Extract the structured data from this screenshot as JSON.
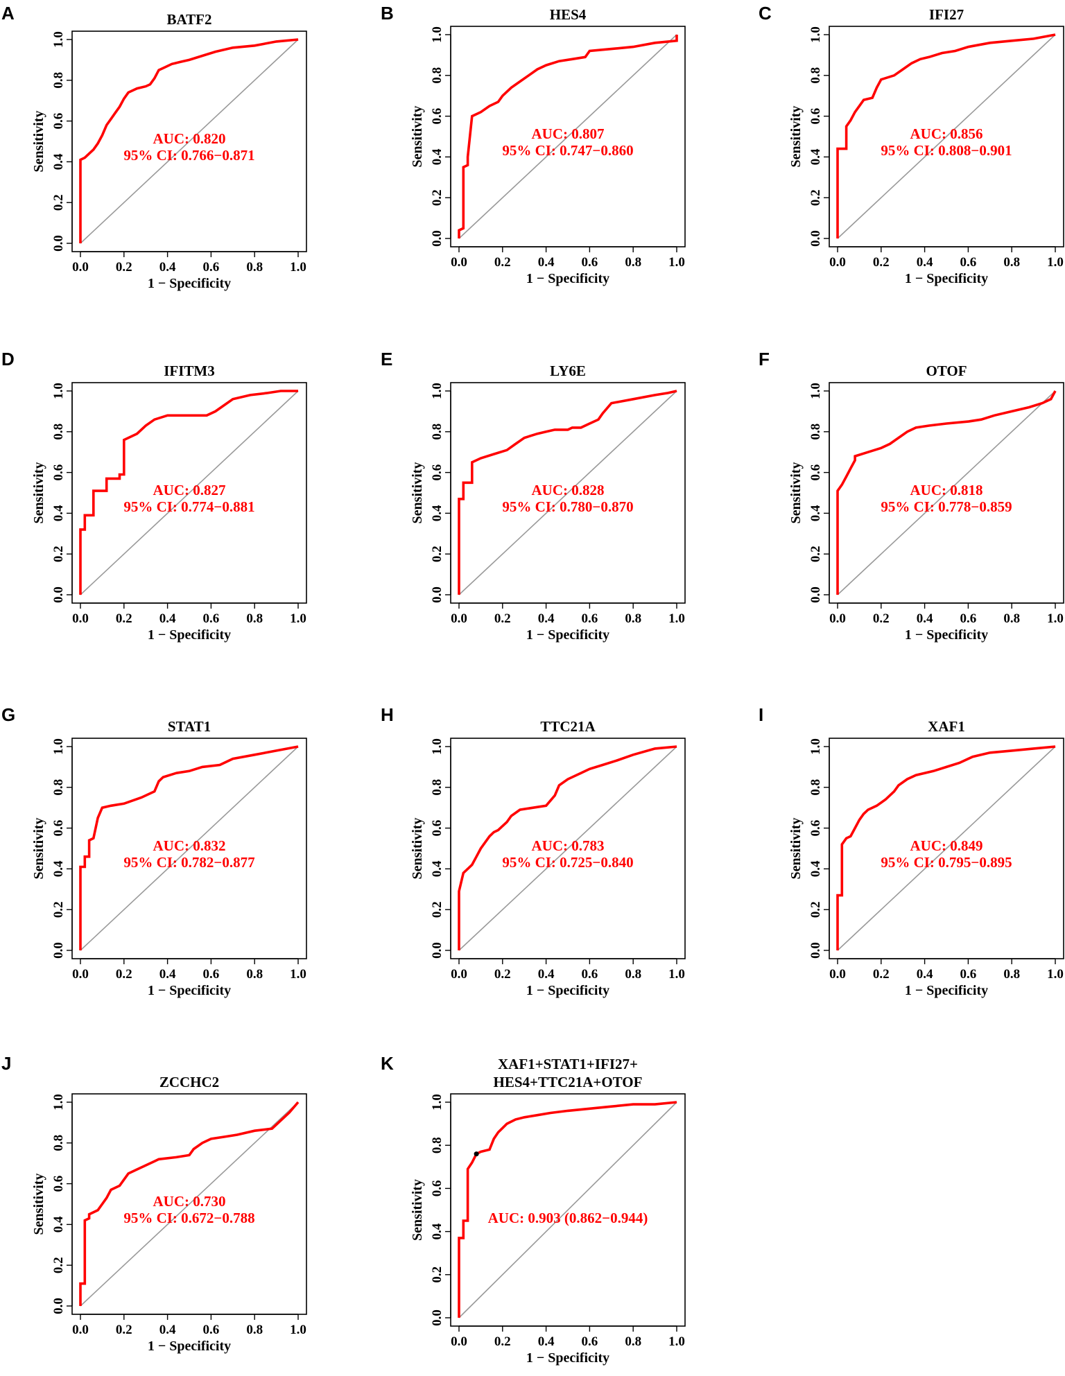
{
  "figure": {
    "xlabel": "1 − Specificity",
    "ylabel": "Sensitivity",
    "curve_color": "#ff0000",
    "diagonal_color": "#999999"
  },
  "chart_data": [
    {
      "type": "line",
      "panel": "A",
      "title": [
        "BATF2"
      ],
      "auc_lines": [
        "AUC: 0.820",
        "95% CI: 0.766−0.871"
      ],
      "xlabel": "1 − Specificity",
      "ylabel": "Sensitivity",
      "xlim": [
        0,
        1
      ],
      "ylim": [
        0,
        1
      ],
      "xticks": [
        "0.0",
        "0.2",
        "0.4",
        "0.6",
        "0.8",
        "1.0"
      ],
      "yticks": [
        "0.0",
        "0.2",
        "0.4",
        "0.6",
        "0.8",
        "1.0"
      ],
      "x": [
        0,
        0,
        0.02,
        0.04,
        0.06,
        0.08,
        0.1,
        0.12,
        0.14,
        0.16,
        0.18,
        0.2,
        0.22,
        0.26,
        0.3,
        0.32,
        0.34,
        0.36,
        0.38,
        0.42,
        0.46,
        0.5,
        0.56,
        0.62,
        0.7,
        0.8,
        0.9,
        1.0
      ],
      "y": [
        0,
        0.41,
        0.42,
        0.44,
        0.46,
        0.49,
        0.53,
        0.58,
        0.61,
        0.64,
        0.67,
        0.71,
        0.74,
        0.76,
        0.77,
        0.78,
        0.81,
        0.85,
        0.86,
        0.88,
        0.89,
        0.9,
        0.92,
        0.94,
        0.96,
        0.97,
        0.99,
        1.0
      ]
    },
    {
      "type": "line",
      "panel": "B",
      "title": [
        "HES4"
      ],
      "auc_lines": [
        "AUC: 0.807",
        "95% CI: 0.747−0.860"
      ],
      "xlabel": "1 − Specificity",
      "ylabel": "Sensitivity",
      "xlim": [
        0,
        1
      ],
      "ylim": [
        0,
        1
      ],
      "xticks": [
        "0.0",
        "0.2",
        "0.4",
        "0.6",
        "0.8",
        "1.0"
      ],
      "yticks": [
        "0.0",
        "0.2",
        "0.4",
        "0.6",
        "0.8",
        "1.0"
      ],
      "x": [
        0,
        0,
        0.02,
        0.02,
        0.04,
        0.04,
        0.06,
        0.06,
        0.1,
        0.14,
        0.18,
        0.2,
        0.24,
        0.28,
        0.32,
        0.36,
        0.4,
        0.46,
        0.52,
        0.58,
        0.6,
        0.7,
        0.8,
        0.9,
        1.0,
        1.0
      ],
      "y": [
        0,
        0.04,
        0.05,
        0.35,
        0.36,
        0.4,
        0.6,
        0.6,
        0.62,
        0.65,
        0.67,
        0.7,
        0.74,
        0.77,
        0.8,
        0.83,
        0.85,
        0.87,
        0.88,
        0.89,
        0.92,
        0.93,
        0.94,
        0.96,
        0.97,
        1.0
      ]
    },
    {
      "type": "line",
      "panel": "C",
      "title": [
        "IFI27"
      ],
      "auc_lines": [
        "AUC: 0.856",
        "95% CI: 0.808−0.901"
      ],
      "xlabel": "1 − Specificity",
      "ylabel": "Sensitivity",
      "xlim": [
        0,
        1
      ],
      "ylim": [
        0,
        1
      ],
      "xticks": [
        "0.0",
        "0.2",
        "0.4",
        "0.6",
        "0.8",
        "1.0"
      ],
      "yticks": [
        "0.0",
        "0.2",
        "0.4",
        "0.6",
        "0.8",
        "1.0"
      ],
      "x": [
        0,
        0,
        0.04,
        0.04,
        0.06,
        0.08,
        0.1,
        0.12,
        0.16,
        0.18,
        0.2,
        0.26,
        0.3,
        0.34,
        0.38,
        0.42,
        0.48,
        0.54,
        0.6,
        0.7,
        0.8,
        0.9,
        1.0
      ],
      "y": [
        0,
        0.44,
        0.44,
        0.55,
        0.58,
        0.62,
        0.65,
        0.68,
        0.69,
        0.74,
        0.78,
        0.8,
        0.83,
        0.86,
        0.88,
        0.89,
        0.91,
        0.92,
        0.94,
        0.96,
        0.97,
        0.98,
        1.0
      ]
    },
    {
      "type": "line",
      "panel": "D",
      "title": [
        "IFITM3"
      ],
      "auc_lines": [
        "AUC: 0.827",
        "95% CI: 0.774−0.881"
      ],
      "xlabel": "1 − Specificity",
      "ylabel": "Sensitivity",
      "xlim": [
        0,
        1
      ],
      "ylim": [
        0,
        1
      ],
      "xticks": [
        "0.0",
        "0.2",
        "0.4",
        "0.6",
        "0.8",
        "1.0"
      ],
      "yticks": [
        "0.0",
        "0.2",
        "0.4",
        "0.6",
        "0.8",
        "1.0"
      ],
      "x": [
        0,
        0,
        0.02,
        0.02,
        0.06,
        0.06,
        0.12,
        0.12,
        0.18,
        0.18,
        0.2,
        0.2,
        0.26,
        0.3,
        0.34,
        0.4,
        0.5,
        0.58,
        0.62,
        0.66,
        0.7,
        0.78,
        0.86,
        0.92,
        1.0
      ],
      "y": [
        0,
        0.32,
        0.32,
        0.39,
        0.39,
        0.51,
        0.51,
        0.57,
        0.57,
        0.59,
        0.59,
        0.76,
        0.79,
        0.83,
        0.86,
        0.88,
        0.88,
        0.88,
        0.9,
        0.93,
        0.96,
        0.98,
        0.99,
        1.0,
        1.0
      ]
    },
    {
      "type": "line",
      "panel": "E",
      "title": [
        "LY6E"
      ],
      "auc_lines": [
        "AUC: 0.828",
        "95% CI: 0.780−0.870"
      ],
      "xlabel": "1 − Specificity",
      "ylabel": "Sensitivity",
      "xlim": [
        0,
        1
      ],
      "ylim": [
        0,
        1
      ],
      "xticks": [
        "0.0",
        "0.2",
        "0.4",
        "0.6",
        "0.8",
        "1.0"
      ],
      "yticks": [
        "0.0",
        "0.2",
        "0.4",
        "0.6",
        "0.8",
        "1.0"
      ],
      "x": [
        0,
        0,
        0.02,
        0.02,
        0.06,
        0.06,
        0.1,
        0.16,
        0.22,
        0.26,
        0.3,
        0.36,
        0.4,
        0.44,
        0.5,
        0.52,
        0.56,
        0.6,
        0.64,
        0.66,
        0.7,
        0.8,
        0.9,
        0.96,
        1.0
      ],
      "y": [
        0,
        0.47,
        0.47,
        0.55,
        0.55,
        0.65,
        0.67,
        0.69,
        0.71,
        0.74,
        0.77,
        0.79,
        0.8,
        0.81,
        0.81,
        0.82,
        0.82,
        0.84,
        0.86,
        0.89,
        0.94,
        0.96,
        0.98,
        0.99,
        1.0
      ]
    },
    {
      "type": "line",
      "panel": "F",
      "title": [
        "OTOF"
      ],
      "auc_lines": [
        "AUC: 0.818",
        "95% CI: 0.778−0.859"
      ],
      "xlabel": "1 − Specificity",
      "ylabel": "Sensitivity",
      "xlim": [
        0,
        1
      ],
      "ylim": [
        0,
        1
      ],
      "xticks": [
        "0.0",
        "0.2",
        "0.4",
        "0.6",
        "0.8",
        "1.0"
      ],
      "yticks": [
        "0.0",
        "0.2",
        "0.4",
        "0.6",
        "0.8",
        "1.0"
      ],
      "x": [
        0,
        0,
        0.02,
        0.04,
        0.06,
        0.08,
        0.08,
        0.14,
        0.2,
        0.24,
        0.28,
        0.32,
        0.36,
        0.42,
        0.5,
        0.6,
        0.66,
        0.72,
        0.8,
        0.88,
        0.94,
        0.98,
        1.0
      ],
      "y": [
        0,
        0.51,
        0.54,
        0.58,
        0.62,
        0.66,
        0.68,
        0.7,
        0.72,
        0.74,
        0.77,
        0.8,
        0.82,
        0.83,
        0.84,
        0.85,
        0.86,
        0.88,
        0.9,
        0.92,
        0.94,
        0.96,
        1.0
      ]
    },
    {
      "type": "line",
      "panel": "G",
      "title": [
        "STAT1"
      ],
      "auc_lines": [
        "AUC: 0.832",
        "95% CI: 0.782−0.877"
      ],
      "xlabel": "1 − Specificity",
      "ylabel": "Sensitivity",
      "xlim": [
        0,
        1
      ],
      "ylim": [
        0,
        1
      ],
      "xticks": [
        "0.0",
        "0.2",
        "0.4",
        "0.6",
        "0.8",
        "1.0"
      ],
      "yticks": [
        "0.0",
        "0.2",
        "0.4",
        "0.6",
        "0.8",
        "1.0"
      ],
      "x": [
        0,
        0,
        0.02,
        0.02,
        0.04,
        0.04,
        0.06,
        0.08,
        0.1,
        0.14,
        0.2,
        0.28,
        0.34,
        0.36,
        0.38,
        0.44,
        0.5,
        0.56,
        0.64,
        0.7,
        0.8,
        0.9,
        1.0
      ],
      "y": [
        0,
        0.41,
        0.41,
        0.46,
        0.46,
        0.54,
        0.55,
        0.65,
        0.7,
        0.71,
        0.72,
        0.75,
        0.78,
        0.83,
        0.85,
        0.87,
        0.88,
        0.9,
        0.91,
        0.94,
        0.96,
        0.98,
        1.0
      ]
    },
    {
      "type": "line",
      "panel": "H",
      "title": [
        "TTC21A"
      ],
      "auc_lines": [
        "AUC: 0.783",
        "95% CI: 0.725−0.840"
      ],
      "xlabel": "1 − Specificity",
      "ylabel": "Sensitivity",
      "xlim": [
        0,
        1
      ],
      "ylim": [
        0,
        1
      ],
      "xticks": [
        "0.0",
        "0.2",
        "0.4",
        "0.6",
        "0.8",
        "1.0"
      ],
      "yticks": [
        "0.0",
        "0.2",
        "0.4",
        "0.6",
        "0.8",
        "1.0"
      ],
      "x": [
        0,
        0,
        0.02,
        0.04,
        0.06,
        0.08,
        0.1,
        0.12,
        0.14,
        0.16,
        0.18,
        0.22,
        0.24,
        0.28,
        0.34,
        0.4,
        0.44,
        0.46,
        0.5,
        0.56,
        0.6,
        0.66,
        0.72,
        0.8,
        0.9,
        1.0
      ],
      "y": [
        0,
        0.29,
        0.38,
        0.4,
        0.42,
        0.46,
        0.5,
        0.53,
        0.56,
        0.58,
        0.59,
        0.63,
        0.66,
        0.69,
        0.7,
        0.71,
        0.76,
        0.81,
        0.84,
        0.87,
        0.89,
        0.91,
        0.93,
        0.96,
        0.99,
        1.0
      ]
    },
    {
      "type": "line",
      "panel": "I",
      "title": [
        "XAF1"
      ],
      "auc_lines": [
        "AUC: 0.849",
        "95% CI: 0.795−0.895"
      ],
      "xlabel": "1 − Specificity",
      "ylabel": "Sensitivity",
      "xlim": [
        0,
        1
      ],
      "ylim": [
        0,
        1
      ],
      "xticks": [
        "0.0",
        "0.2",
        "0.4",
        "0.6",
        "0.8",
        "1.0"
      ],
      "yticks": [
        "0.0",
        "0.2",
        "0.4",
        "0.6",
        "0.8",
        "1.0"
      ],
      "x": [
        0,
        0,
        0.02,
        0.02,
        0.04,
        0.06,
        0.08,
        0.1,
        0.12,
        0.14,
        0.18,
        0.22,
        0.26,
        0.28,
        0.32,
        0.36,
        0.44,
        0.5,
        0.56,
        0.62,
        0.7,
        0.8,
        0.9,
        1.0
      ],
      "y": [
        0,
        0.27,
        0.27,
        0.52,
        0.55,
        0.56,
        0.6,
        0.64,
        0.67,
        0.69,
        0.71,
        0.74,
        0.78,
        0.81,
        0.84,
        0.86,
        0.88,
        0.9,
        0.92,
        0.95,
        0.97,
        0.98,
        0.99,
        1.0
      ]
    },
    {
      "type": "line",
      "panel": "J",
      "title": [
        "ZCCHC2"
      ],
      "auc_lines": [
        "AUC: 0.730",
        "95% CI: 0.672−0.788"
      ],
      "xlabel": "1 − Specificity",
      "ylabel": "Sensitivity",
      "xlim": [
        0,
        1
      ],
      "ylim": [
        0,
        1
      ],
      "xticks": [
        "0.0",
        "0.2",
        "0.4",
        "0.6",
        "0.8",
        "1.0"
      ],
      "yticks": [
        "0.0",
        "0.2",
        "0.4",
        "0.6",
        "0.8",
        "1.0"
      ],
      "x": [
        0,
        0,
        0.02,
        0.02,
        0.04,
        0.04,
        0.08,
        0.1,
        0.12,
        0.14,
        0.18,
        0.2,
        0.22,
        0.26,
        0.3,
        0.34,
        0.36,
        0.44,
        0.5,
        0.52,
        0.56,
        0.6,
        0.66,
        0.72,
        0.8,
        0.88,
        0.9,
        0.96,
        1.0
      ],
      "y": [
        0,
        0.11,
        0.11,
        0.42,
        0.43,
        0.45,
        0.47,
        0.5,
        0.53,
        0.57,
        0.59,
        0.62,
        0.65,
        0.67,
        0.69,
        0.71,
        0.72,
        0.73,
        0.74,
        0.77,
        0.8,
        0.82,
        0.83,
        0.84,
        0.86,
        0.87,
        0.89,
        0.95,
        1.0
      ]
    },
    {
      "type": "line",
      "panel": "K",
      "title": [
        "XAF1+STAT1+IFI27+",
        "HES4+TTC21A+OTOF"
      ],
      "auc_lines": [
        "AUC: 0.903 (0.862−0.944)"
      ],
      "xlabel": "1 − Specificity",
      "ylabel": "Sensitivity",
      "xlim": [
        0,
        1
      ],
      "ylim": [
        0,
        1
      ],
      "xticks": [
        "0.0",
        "0.2",
        "0.4",
        "0.6",
        "0.8",
        "1.0"
      ],
      "yticks": [
        "0.0",
        "0.2",
        "0.4",
        "0.6",
        "0.8",
        "1.0"
      ],
      "x": [
        0,
        0,
        0.02,
        0.02,
        0.04,
        0.04,
        0.06,
        0.08,
        0.1,
        0.14,
        0.16,
        0.18,
        0.2,
        0.22,
        0.26,
        0.3,
        0.36,
        0.42,
        0.5,
        0.6,
        0.7,
        0.8,
        0.9,
        1.0
      ],
      "y": [
        0,
        0.37,
        0.37,
        0.45,
        0.45,
        0.69,
        0.72,
        0.76,
        0.77,
        0.78,
        0.83,
        0.86,
        0.88,
        0.9,
        0.92,
        0.93,
        0.94,
        0.95,
        0.96,
        0.97,
        0.98,
        0.99,
        0.99,
        1.0
      ],
      "threshold_point": {
        "x": 0.08,
        "y": 0.76
      }
    }
  ]
}
